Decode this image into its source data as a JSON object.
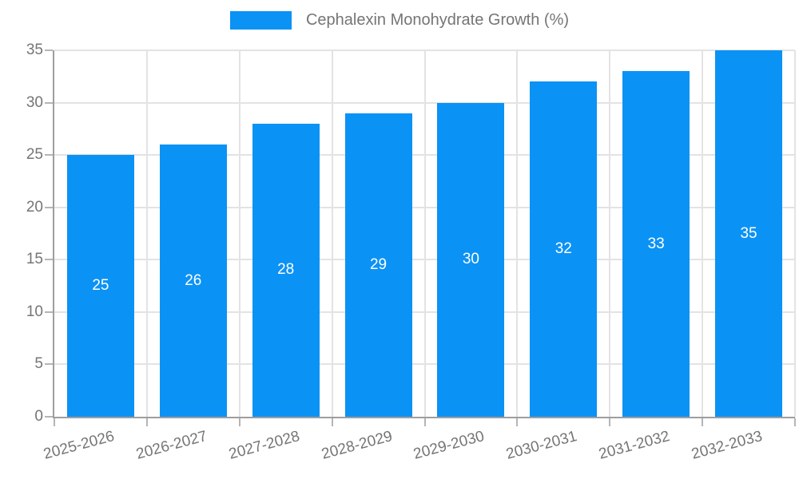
{
  "chart_data": {
    "type": "bar",
    "title": "Cephalexin Monohydrate Growth (%)",
    "legend_entries": [
      "Cephalexin Monohydrate Growth (%)"
    ],
    "legend_position": "top-center",
    "categories": [
      "2025-2026",
      "2026-2027",
      "2027-2028",
      "2028-2029",
      "2029-2030",
      "2030-2031",
      "2031-2032",
      "2032-2033"
    ],
    "values": [
      25,
      26,
      28,
      29,
      30,
      32,
      33,
      35
    ],
    "value_labels": [
      "25",
      "26",
      "28",
      "29",
      "30",
      "32",
      "33",
      "35"
    ],
    "xlabel": "",
    "ylabel": "",
    "ylim": [
      0,
      35
    ],
    "yticks": [
      0,
      5,
      10,
      15,
      20,
      25,
      30,
      35
    ],
    "ytick_labels": [
      "0",
      "5",
      "10",
      "15",
      "20",
      "25",
      "30",
      "35"
    ],
    "grid": "horizontal and vertical light gray gridlines",
    "x_label_rotation_deg": -15,
    "colors": {
      "bar": "#0b92f5",
      "value_label_text": "#ffffff",
      "axis_text": "#757575",
      "grid_line": "#e3e3e3",
      "axis_line": "#9e9e9e",
      "tick_mark": "#b5b5b5",
      "background": "#ffffff"
    }
  }
}
